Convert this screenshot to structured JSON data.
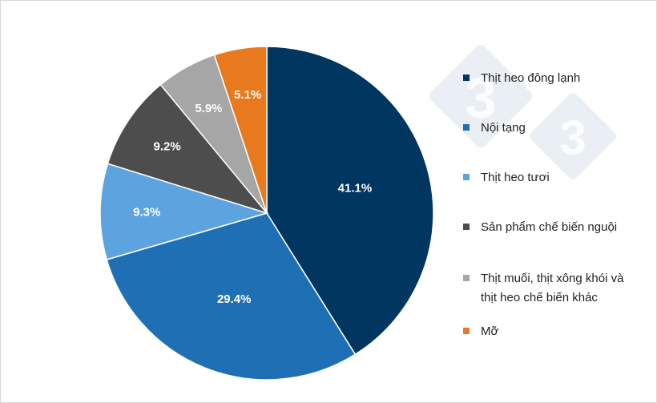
{
  "chart_data": {
    "type": "pie",
    "categories": [
      "Thịt heo đông lạnh",
      "Nội tạng",
      "Thịt heo tươi",
      "Sản phẩm chế biến nguội",
      "Thịt muối, thịt xông khói và thịt heo chế biến khác",
      "Mỡ"
    ],
    "values": [
      41.1,
      29.4,
      9.3,
      9.2,
      5.9,
      5.1
    ],
    "data_labels": [
      "41.1%",
      "29.4%",
      "9.3%",
      "9.2%",
      "5.9%",
      "5.1%"
    ],
    "colors": [
      "#003660",
      "#1f6fb5",
      "#5da3e0",
      "#4d4d4d",
      "#a6a6a6",
      "#e8791f"
    ],
    "start_angle": "12 o'clock",
    "direction": "clockwise",
    "legend_position": "right"
  },
  "legend": {
    "items": [
      {
        "lines": [
          "Thịt heo đông lạnh"
        ]
      },
      {
        "lines": [
          "Nội tạng"
        ]
      },
      {
        "lines": [
          "Thịt heo tươi"
        ]
      },
      {
        "lines": [
          "Sản phẩm chế biến nguội"
        ]
      },
      {
        "lines": [
          "Thịt muối, thịt xông khói và",
          "thịt heo chế biến khác"
        ]
      },
      {
        "lines": [
          "Mỡ"
        ]
      }
    ]
  },
  "watermark": {
    "text": "3"
  }
}
